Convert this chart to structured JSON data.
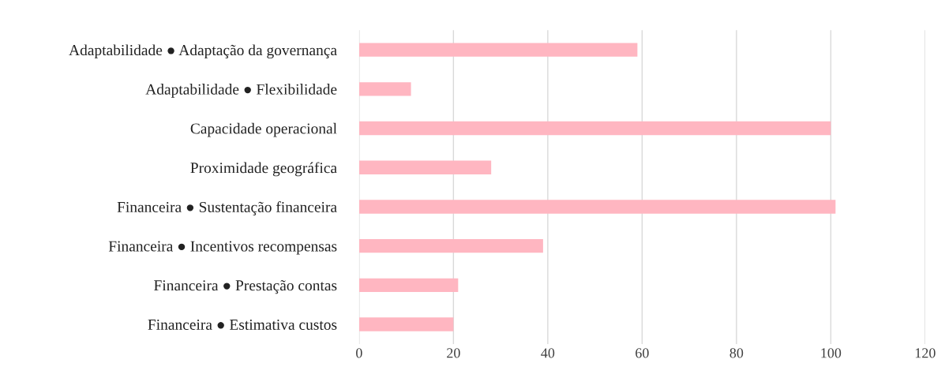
{
  "chart_data": {
    "type": "bar",
    "orientation": "horizontal",
    "categories": [
      "Adaptabilidade ● Adaptação da governança",
      "Adaptabilidade ● Flexibilidade",
      "Capacidade operacional",
      "Proximidade geográfica",
      "Financeira ● Sustentação financeira",
      "Financeira ● Incentivos recompensas",
      "Financeira ● Prestação contas",
      "Financeira ● Estimativa custos"
    ],
    "values": [
      59,
      11,
      100,
      28,
      101,
      39,
      21,
      20
    ],
    "color": "#ffb6c1",
    "xlim": [
      0,
      120
    ],
    "xticks": [
      0,
      20,
      40,
      60,
      80,
      100,
      120
    ],
    "grid": "x"
  }
}
